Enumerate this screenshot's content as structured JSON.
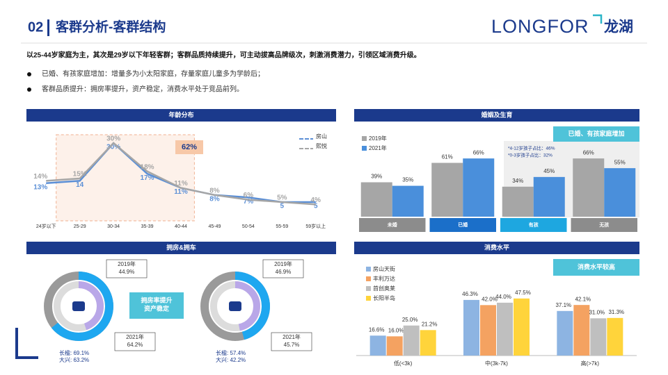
{
  "header": {
    "number": "02",
    "title": "客群分析-客群结构",
    "logo": "LONGFOR",
    "logo_cn": "龙湖"
  },
  "summary": "以25-44岁家庭为主，其次是29岁以下年轻客群；客群品质持续提升，可主动拔高品牌级次，刺激消费潜力，引领区域消费升级。",
  "bullets": [
    "已婚、有孩家庭增加：增量多为小太阳家庭，存量家庭儿童多为学龄后；",
    "客群品质提升：拥房率提升，资产稳定，消费水平处于竞品前列。"
  ],
  "chart_data": [
    {
      "type": "line",
      "title": "年龄分布",
      "annotation": "62%",
      "categories": [
        "24岁以下",
        "25-29",
        "30-34",
        "35-39",
        "40-44",
        "45-49",
        "50-54",
        "55-59",
        "59岁以上"
      ],
      "series": [
        {
          "name": "房山",
          "color": "#5b8fd6",
          "values": [
            13,
            14,
            30,
            17,
            11,
            8,
            7,
            5,
            5
          ],
          "value_labels": [
            "13%",
            "14",
            "30%",
            "17%",
            "11%",
            "8%",
            "7%",
            "5",
            "5"
          ]
        },
        {
          "name": "熙悦",
          "color": "#a6a6a6",
          "values": [
            14,
            15,
            30,
            18,
            11,
            8,
            6,
            5,
            4
          ],
          "value_labels": [
            "14%",
            "15%",
            "30%",
            "18%",
            "11%",
            "8%",
            "6%",
            "5%",
            "4%"
          ]
        }
      ]
    },
    {
      "type": "bar",
      "title": "婚姻及生育",
      "annotation": "已婚、有孩家庭增加",
      "notes": [
        "*4-12岁孩子占比：46%",
        "*0-3岁孩子占比：32%"
      ],
      "categories": [
        "未婚",
        "已婚",
        "有孩",
        "无孩"
      ],
      "series": [
        {
          "name": "2019年",
          "color": "#a6a6a6",
          "values": [
            39,
            61,
            34,
            66
          ],
          "value_labels": [
            "39%",
            "61%",
            "34%",
            "66%"
          ]
        },
        {
          "name": "2021年",
          "color": "#4a8fdb",
          "values": [
            35,
            66,
            45,
            55
          ],
          "value_labels": [
            "35%",
            "66%",
            "45%",
            "55%"
          ]
        }
      ]
    },
    {
      "type": "donut",
      "title": "拥房&拥车",
      "callout": [
        "拥房率提升",
        "资产稳定"
      ],
      "items": [
        {
          "name": "2019年",
          "value": 44.9,
          "value_label": "44.9%",
          "color": "#b9a7e8"
        },
        {
          "name": "2021年",
          "value": 64.2,
          "value_label": "64.2%",
          "color": "#1ea7f0"
        }
      ],
      "notes": [
        "长楹: 69.1%",
        "大兴: 63.2%"
      ]
    },
    {
      "type": "donut",
      "items": [
        {
          "name": "2019年",
          "value": 46.9,
          "value_label": "46.9%",
          "color": "#b9a7e8"
        },
        {
          "name": "2021年",
          "value": 45.7,
          "value_label": "45.7%",
          "color": "#1ea7f0"
        }
      ],
      "notes": [
        "长楹: 57.4%",
        "大兴: 42.2%"
      ]
    },
    {
      "type": "bar",
      "title": "消费水平",
      "annotation": "消费水平较高",
      "categories": [
        "低(<3k)",
        "中(3k-7k)",
        "高(>7k)"
      ],
      "series": [
        {
          "name": "房山天街",
          "color": "#8db4e2",
          "values": [
            16.6,
            46.3,
            37.1
          ],
          "value_labels": [
            "16.6%",
            "46.3%",
            "37.1%"
          ]
        },
        {
          "name": "丰利万达",
          "color": "#f4a261",
          "values": [
            16.0,
            42.0,
            42.1
          ],
          "value_labels": [
            "16.0%",
            "42.0%",
            "42.1%"
          ]
        },
        {
          "name": "首创奥莱",
          "color": "#bfbfbf",
          "values": [
            25.0,
            44.0,
            31.0
          ],
          "value_labels": [
            "25.0%",
            "44.0%",
            "31.0%"
          ]
        },
        {
          "name": "长阳半岛",
          "color": "#ffd43b",
          "values": [
            21.2,
            47.5,
            31.3
          ],
          "value_labels": [
            "21.2%",
            "47.5%",
            "31.3%"
          ]
        }
      ]
    }
  ]
}
